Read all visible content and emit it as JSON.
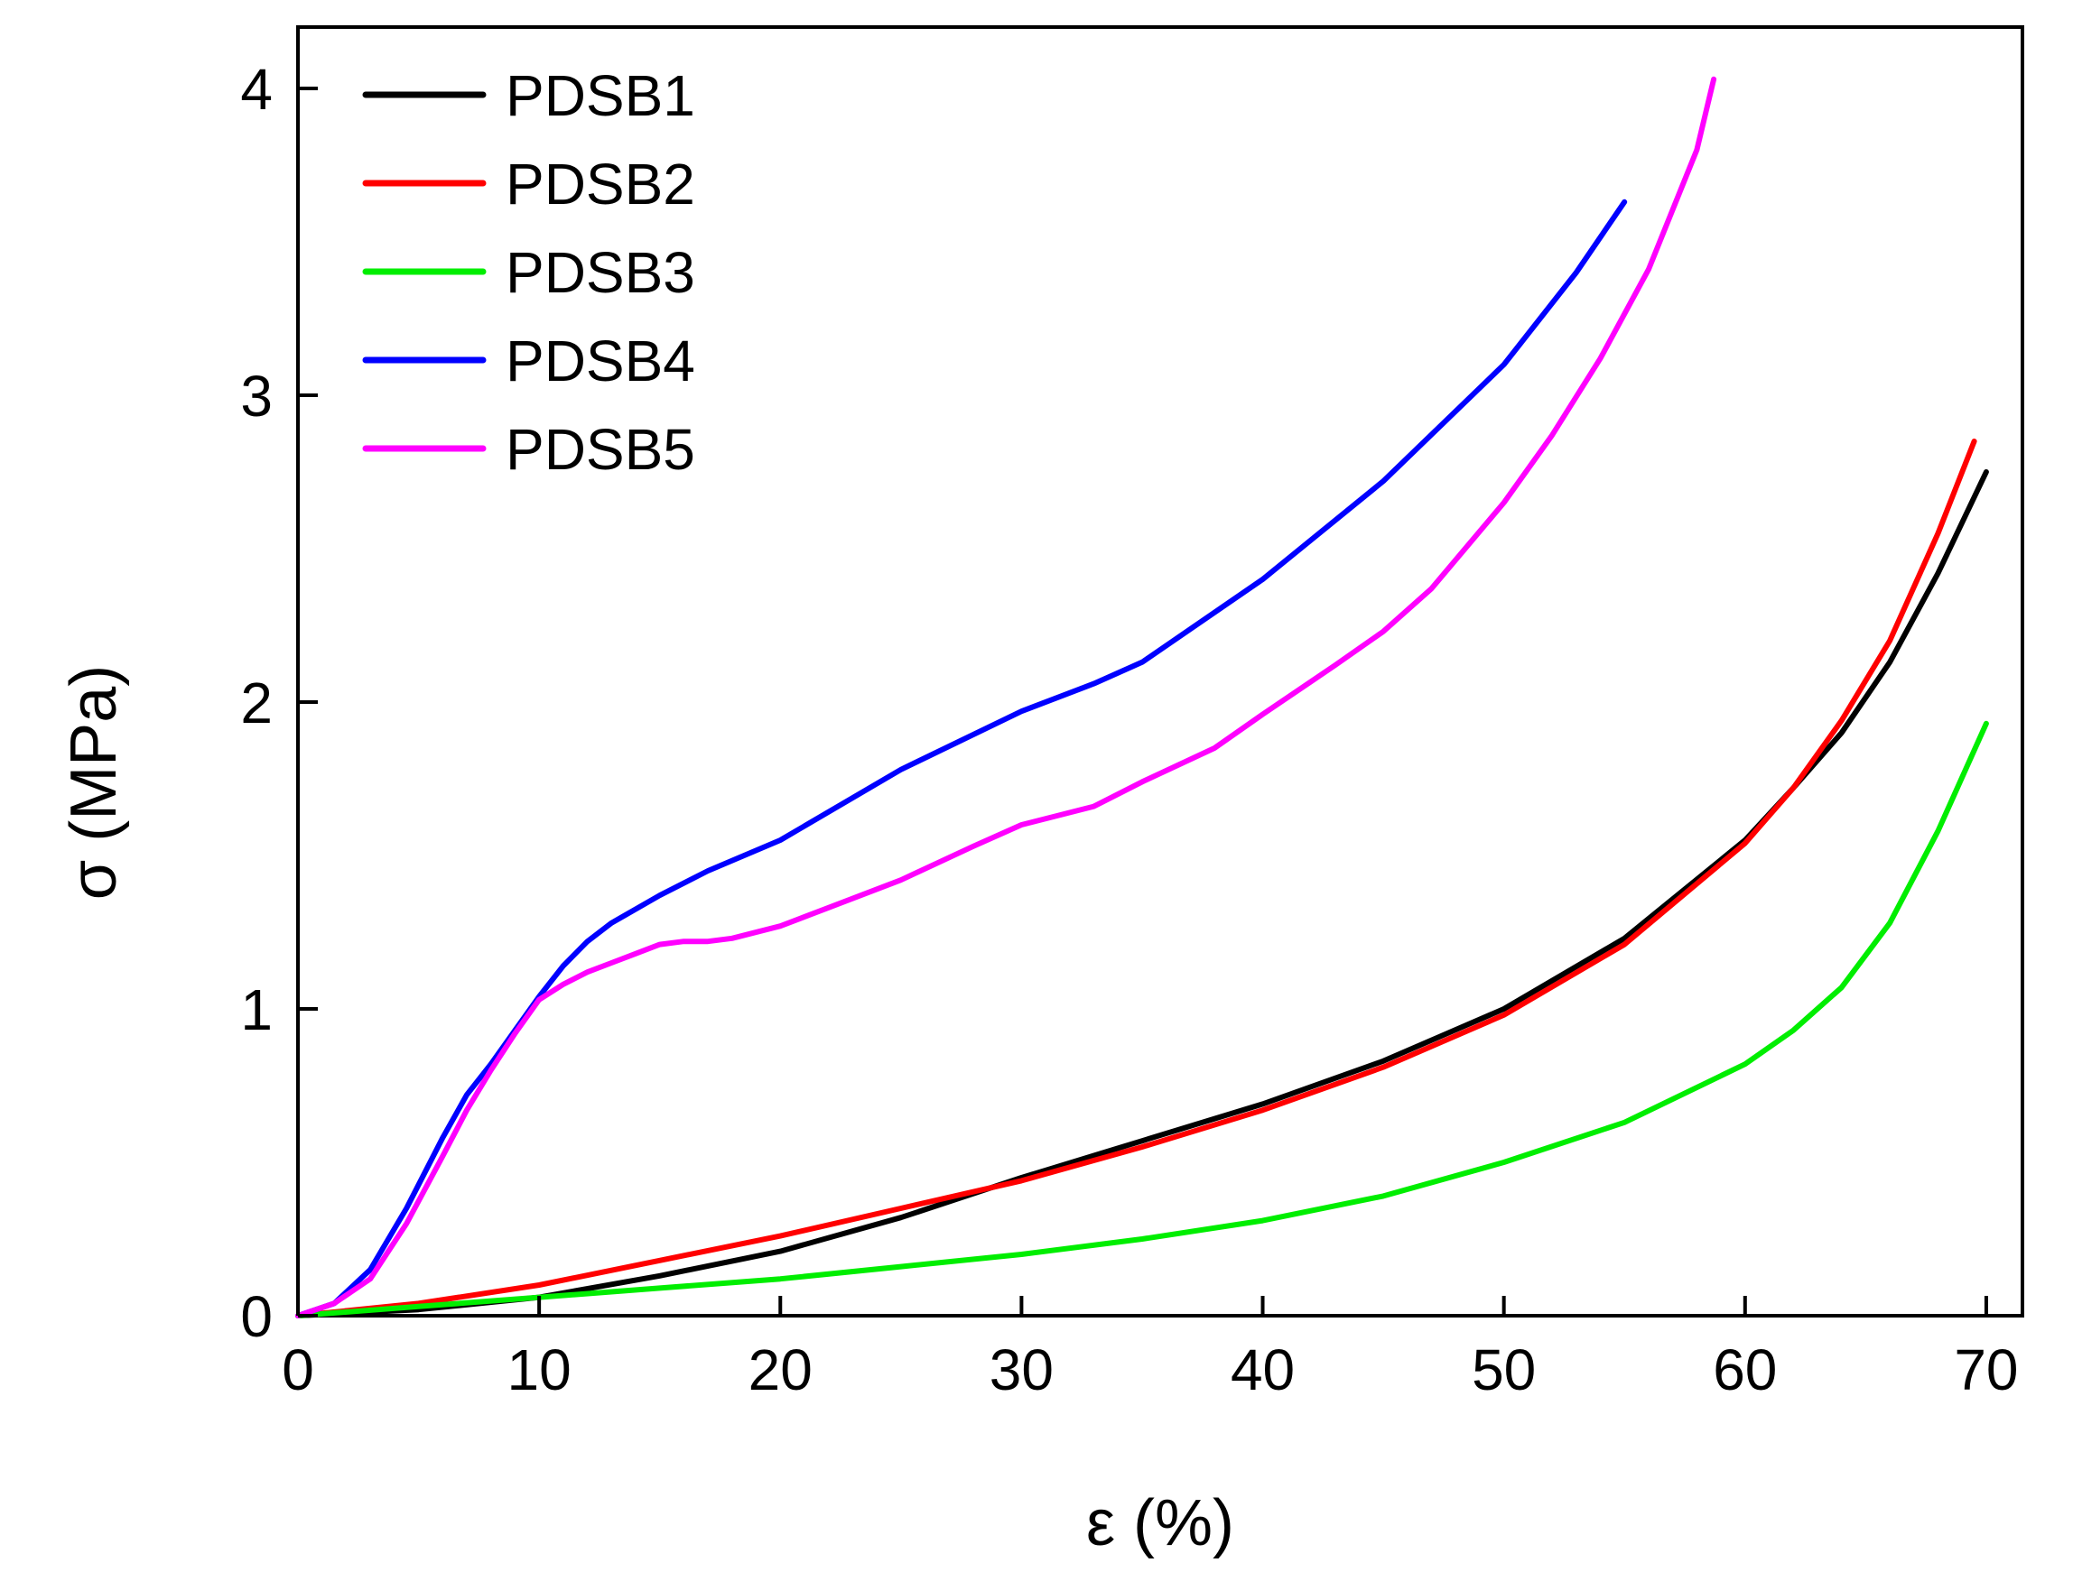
{
  "chart_data": {
    "type": "line",
    "title": "",
    "xlabel": "ε (%)",
    "ylabel": "σ (MPa)",
    "xlim": [
      0,
      71.5
    ],
    "ylim": [
      0,
      4.2
    ],
    "xticks": [
      0,
      10,
      20,
      30,
      40,
      50,
      60,
      70
    ],
    "yticks": [
      0,
      1,
      2,
      3,
      4
    ],
    "legend_position": "top-left",
    "grid": false,
    "series": [
      {
        "name": "PDSB1",
        "color": "#000000",
        "x": [
          0,
          5,
          10,
          15,
          20,
          25,
          30,
          35,
          40,
          45,
          50,
          55,
          60,
          62,
          64,
          66,
          68,
          70
        ],
        "y": [
          0,
          0.02,
          0.06,
          0.13,
          0.21,
          0.32,
          0.45,
          0.57,
          0.69,
          0.83,
          1.0,
          1.23,
          1.55,
          1.72,
          1.9,
          2.13,
          2.42,
          2.75
        ]
      },
      {
        "name": "PDSB2",
        "color": "#ff0000",
        "x": [
          0,
          5,
          10,
          15,
          20,
          25,
          30,
          35,
          40,
          45,
          50,
          55,
          60,
          62,
          64,
          66,
          68,
          69.5
        ],
        "y": [
          0,
          0.04,
          0.1,
          0.18,
          0.26,
          0.35,
          0.44,
          0.55,
          0.67,
          0.81,
          0.98,
          1.21,
          1.54,
          1.72,
          1.94,
          2.2,
          2.55,
          2.85
        ]
      },
      {
        "name": "PDSB3",
        "color": "#00ee00",
        "x": [
          0,
          5,
          10,
          15,
          20,
          25,
          30,
          35,
          40,
          45,
          50,
          55,
          60,
          62,
          64,
          66,
          68,
          70
        ],
        "y": [
          0,
          0.03,
          0.06,
          0.09,
          0.12,
          0.16,
          0.2,
          0.25,
          0.31,
          0.39,
          0.5,
          0.63,
          0.82,
          0.93,
          1.07,
          1.28,
          1.58,
          1.93
        ]
      },
      {
        "name": "PDSB4",
        "color": "#0000ff",
        "x": [
          0,
          1.5,
          3,
          4.5,
          6,
          7,
          8,
          9,
          10,
          11,
          12,
          13,
          15,
          17,
          20,
          25,
          30,
          33,
          35,
          40,
          45,
          50,
          53,
          55
        ],
        "y": [
          0,
          0.04,
          0.15,
          0.35,
          0.58,
          0.72,
          0.82,
          0.93,
          1.04,
          1.14,
          1.22,
          1.28,
          1.37,
          1.45,
          1.55,
          1.78,
          1.97,
          2.06,
          2.13,
          2.4,
          2.72,
          3.1,
          3.4,
          3.63
        ]
      },
      {
        "name": "PDSB5",
        "color": "#ff00ff",
        "x": [
          0,
          1.5,
          3,
          4.5,
          6,
          7,
          8,
          9,
          10,
          11,
          12,
          13,
          14,
          15,
          16,
          17,
          18,
          20,
          22,
          25,
          28,
          30,
          33,
          35,
          38,
          40,
          43,
          45,
          47,
          50,
          52,
          54,
          56,
          58,
          58.7
        ],
        "y": [
          0,
          0.04,
          0.12,
          0.3,
          0.52,
          0.67,
          0.8,
          0.92,
          1.03,
          1.08,
          1.12,
          1.15,
          1.18,
          1.21,
          1.22,
          1.22,
          1.23,
          1.27,
          1.33,
          1.42,
          1.53,
          1.6,
          1.66,
          1.74,
          1.85,
          1.96,
          2.12,
          2.23,
          2.37,
          2.65,
          2.87,
          3.12,
          3.41,
          3.8,
          4.03
        ]
      }
    ]
  }
}
